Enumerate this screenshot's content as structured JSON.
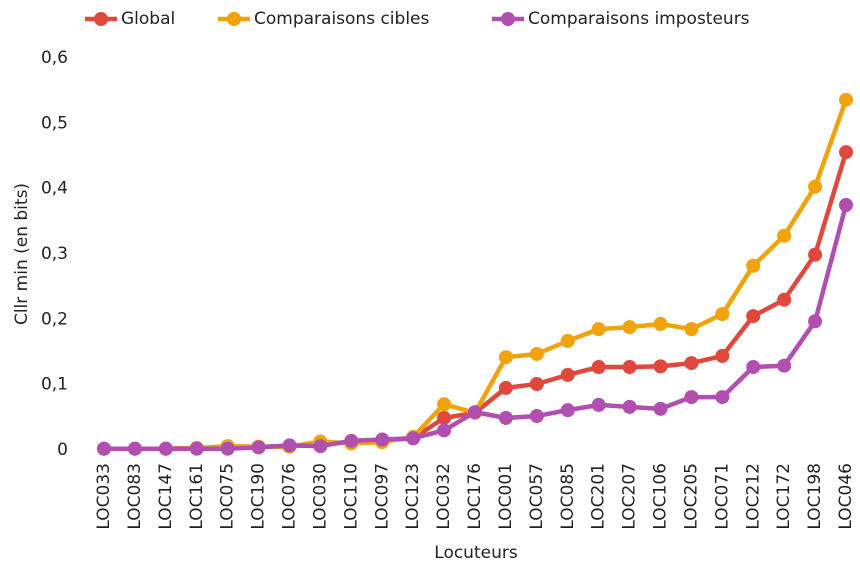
{
  "chart_data": {
    "type": "line",
    "xlabel": "Locuteurs",
    "ylabel": "Cllr min (en bits)",
    "categories": [
      "LOC033",
      "LOC083",
      "LOC147",
      "LOC161",
      "LOC075",
      "LOC190",
      "LOC076",
      "LOC030",
      "LOC110",
      "LOC097",
      "LOC123",
      "LOC032",
      "LOC176",
      "LOC001",
      "LOC057",
      "LOC085",
      "LOC201",
      "LOC207",
      "LOC106",
      "LOC205",
      "LOC071",
      "LOC212",
      "LOC172",
      "LOC198",
      "LOC046"
    ],
    "series": [
      {
        "name": "Global",
        "color": "#e0483e",
        "values": [
          0.002,
          0.002,
          0.002,
          0.003,
          0.004,
          0.005,
          0.006,
          0.009,
          0.012,
          0.014,
          0.018,
          0.049,
          0.057,
          0.095,
          0.101,
          0.115,
          0.127,
          0.127,
          0.128,
          0.133,
          0.144,
          0.205,
          0.23,
          0.299,
          0.456
        ]
      },
      {
        "name": "Comparaisons cibles",
        "color": "#f0a30a",
        "values": [
          0.002,
          0.002,
          0.002,
          0.003,
          0.006,
          0.005,
          0.005,
          0.013,
          0.01,
          0.012,
          0.02,
          0.07,
          0.057,
          0.142,
          0.147,
          0.167,
          0.185,
          0.188,
          0.193,
          0.185,
          0.208,
          0.282,
          0.328,
          0.403,
          0.536
        ]
      },
      {
        "name": "Comparaisons imposteurs",
        "color": "#b04fb0",
        "values": [
          0.002,
          0.002,
          0.002,
          0.002,
          0.002,
          0.004,
          0.007,
          0.006,
          0.014,
          0.016,
          0.018,
          0.03,
          0.058,
          0.049,
          0.052,
          0.061,
          0.069,
          0.066,
          0.063,
          0.081,
          0.081,
          0.127,
          0.129,
          0.197,
          0.375
        ]
      }
    ],
    "ylim": [
      0,
      0.6
    ],
    "yticks": [
      0,
      {
        "value": 0.1,
        "label": "0,1"
      },
      {
        "value": 0.2,
        "label": "0,2"
      },
      {
        "value": 0.3,
        "label": "0,3"
      },
      {
        "value": 0.4,
        "label": "0,4"
      },
      {
        "value": 0.5,
        "label": "0,5"
      },
      {
        "value": 0.6,
        "label": "0,6"
      }
    ],
    "legend": "top",
    "grid": false
  }
}
